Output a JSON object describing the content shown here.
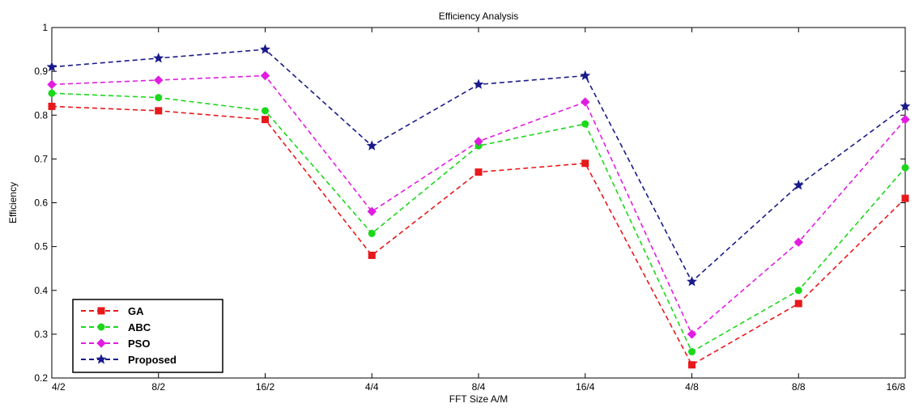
{
  "chart_data": {
    "type": "line",
    "title": "Efficiency Analysis",
    "xlabel": "FFT Size A/M",
    "ylabel": "Efficiency",
    "categories": [
      "4/2",
      "8/2",
      "16/2",
      "4/4",
      "8/4",
      "16/4",
      "4/8",
      "8/8",
      "16/8"
    ],
    "ylim": [
      0.2,
      1.0
    ],
    "yticks": [
      "0.2",
      "0.3",
      "0.4",
      "0.5",
      "0.6",
      "0.7",
      "0.8",
      "0.9",
      "1"
    ],
    "grid": false,
    "legend_position": "bottom-left",
    "series": [
      {
        "name": "GA",
        "color": "#e8191b",
        "marker": "square",
        "values": [
          0.82,
          0.81,
          0.79,
          0.48,
          0.67,
          0.69,
          0.23,
          0.37,
          0.61
        ]
      },
      {
        "name": "ABC",
        "color": "#1bd81b",
        "marker": "circle",
        "values": [
          0.85,
          0.84,
          0.81,
          0.53,
          0.73,
          0.78,
          0.26,
          0.4,
          0.68
        ]
      },
      {
        "name": "PSO",
        "color": "#e11de1",
        "marker": "diamond",
        "values": [
          0.87,
          0.88,
          0.89,
          0.58,
          0.74,
          0.83,
          0.3,
          0.51,
          0.79
        ]
      },
      {
        "name": "Proposed",
        "color": "#1a1a8c",
        "marker": "star",
        "values": [
          0.91,
          0.93,
          0.95,
          0.73,
          0.87,
          0.89,
          0.42,
          0.64,
          0.82
        ]
      }
    ]
  }
}
